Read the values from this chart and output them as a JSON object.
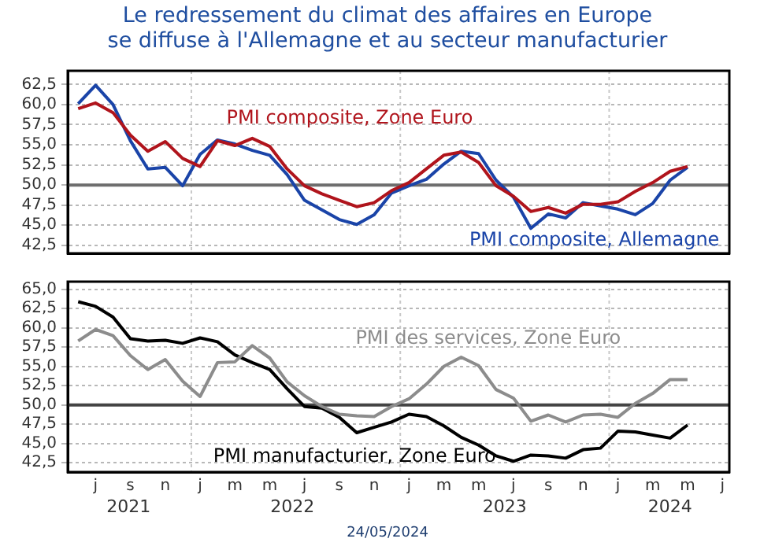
{
  "chart_data": [
    {
      "type": "line",
      "title": "Le redressement du climat des affaires en Europe\nse diffuse à l'Allemagne et au secteur manufacturier",
      "categories": [
        null,
        null,
        null,
        null,
        null,
        null,
        null,
        null,
        null,
        null,
        null,
        null,
        null,
        null,
        null,
        null,
        null,
        null,
        null,
        null,
        null,
        null,
        null,
        null,
        null,
        null,
        null,
        null,
        null,
        null,
        null,
        null,
        null,
        null,
        null,
        null,
        null,
        null
      ],
      "series": [
        {
          "name": "PMI composite, Zone Euro",
          "color": "#b0141c",
          "values": [
            59.5,
            60.2,
            59.0,
            56.2,
            54.2,
            55.4,
            53.3,
            52.3,
            55.5,
            54.9,
            55.8,
            54.8,
            52.0,
            49.9,
            48.9,
            48.1,
            47.3,
            47.8,
            49.3,
            50.3,
            52.0,
            53.7,
            54.1,
            52.8,
            49.9,
            48.6,
            46.7,
            47.2,
            46.5,
            47.6,
            47.6,
            47.9,
            49.2,
            50.3,
            51.7,
            52.3,
            null,
            null
          ]
        },
        {
          "name": "PMI composite, Allemagne",
          "color": "#1a44a8",
          "values": [
            60.1,
            62.4,
            60.0,
            55.5,
            52.0,
            52.2,
            49.9,
            53.8,
            55.6,
            55.1,
            54.3,
            53.7,
            51.3,
            48.1,
            46.9,
            45.7,
            45.1,
            46.3,
            49.0,
            49.9,
            50.7,
            52.6,
            54.2,
            53.9,
            50.6,
            48.5,
            44.6,
            46.4,
            45.9,
            47.8,
            47.4,
            47.0,
            46.3,
            47.7,
            50.6,
            52.2,
            null,
            null
          ]
        }
      ],
      "ylim": [
        41.5,
        64.2
      ],
      "yticks": [
        {
          "value": 42.5,
          "label": "42,5"
        },
        {
          "value": 45,
          "label": "45,0"
        },
        {
          "value": 47.5,
          "label": "47,5"
        },
        {
          "value": 50,
          "label": "50,0"
        },
        {
          "value": 52.5,
          "label": "52,5"
        },
        {
          "value": 55,
          "label": "55,0"
        },
        {
          "value": 57.5,
          "label": "57,5"
        },
        {
          "value": 60,
          "label": "60,0"
        },
        {
          "value": 62.5,
          "label": "62,5"
        }
      ],
      "ref_lines": [
        {
          "axis": "y",
          "value": 50,
          "color": "#6e6e6e"
        }
      ],
      "grid": "y",
      "tick_labels": "y"
    },
    {
      "type": "line",
      "categories": [
        null,
        "j",
        null,
        "s",
        null,
        "n",
        null,
        "j",
        null,
        "m",
        null,
        "m",
        null,
        "j",
        null,
        "s",
        null,
        "n",
        null,
        "j",
        null,
        "m",
        null,
        "m",
        null,
        "j",
        null,
        "s",
        null,
        "n",
        null,
        "j",
        null,
        "m",
        null,
        "m",
        null,
        "j"
      ],
      "series": [
        {
          "name": "PMI des services, Zone Euro",
          "color": "#8c8c8c",
          "values": [
            58.3,
            59.8,
            59.0,
            56.4,
            54.6,
            55.9,
            53.1,
            51.1,
            55.5,
            55.6,
            57.7,
            56.1,
            53.0,
            51.2,
            49.8,
            48.8,
            48.6,
            48.5,
            49.8,
            50.8,
            52.7,
            55.0,
            56.2,
            55.1,
            52.0,
            50.9,
            47.9,
            48.7,
            47.8,
            48.7,
            48.8,
            48.4,
            50.2,
            51.5,
            53.3,
            53.3,
            null,
            null
          ]
        },
        {
          "name": "PMI manufacturier, Zone Euro",
          "color": "#000000",
          "values": [
            63.4,
            62.8,
            61.4,
            58.6,
            58.3,
            58.4,
            58.0,
            58.7,
            58.2,
            56.5,
            55.5,
            54.6,
            52.1,
            49.8,
            49.6,
            48.4,
            46.4,
            47.1,
            47.8,
            48.8,
            48.5,
            47.3,
            45.8,
            44.8,
            43.4,
            42.7,
            43.5,
            43.4,
            43.1,
            44.2,
            44.4,
            46.6,
            46.5,
            46.1,
            45.7,
            47.4,
            null,
            null
          ]
        }
      ],
      "ylim": [
        41.3,
        66.0
      ],
      "yticks": [
        {
          "value": 42.5,
          "label": "42,5"
        },
        {
          "value": 45,
          "label": "45,0"
        },
        {
          "value": 47.5,
          "label": "47,5"
        },
        {
          "value": 50,
          "label": "50,0"
        },
        {
          "value": 52.5,
          "label": "52,5"
        },
        {
          "value": 55,
          "label": "55,0"
        },
        {
          "value": 57.5,
          "label": "57,5"
        },
        {
          "value": 60,
          "label": "60,0"
        },
        {
          "value": 62.5,
          "label": "62,5"
        },
        {
          "value": 65,
          "label": "65,0"
        }
      ],
      "ref_lines": [
        {
          "axis": "y",
          "value": 50,
          "color": "#444444"
        }
      ],
      "grid": "y",
      "annotations": [
        "2021",
        "2022",
        "2023",
        "2024",
        "24/05/2024"
      ]
    }
  ]
}
